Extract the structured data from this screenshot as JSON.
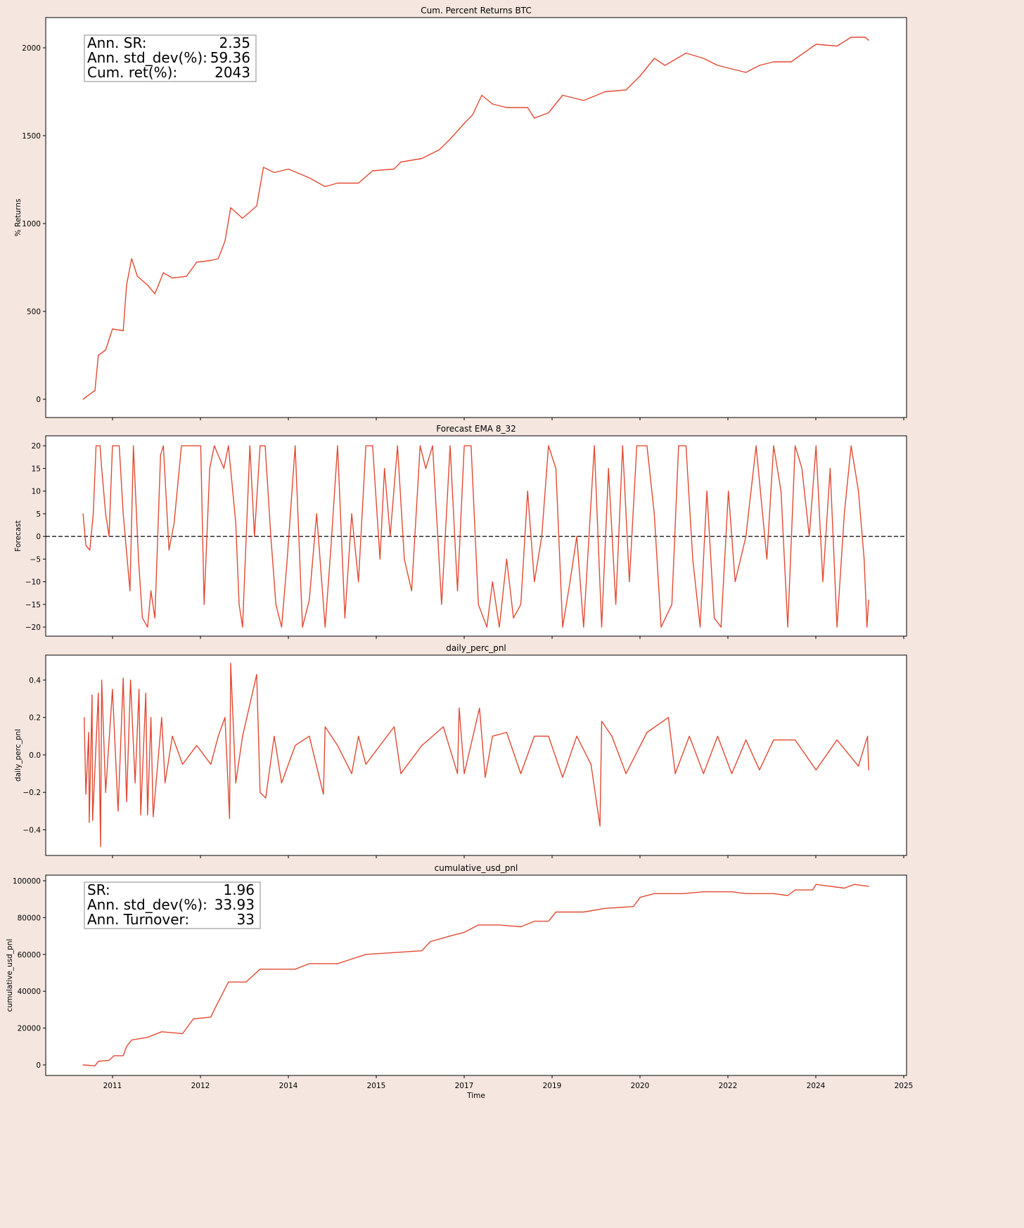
{
  "colors": {
    "background": "#f5e7e0",
    "line": "#e24a33",
    "axes": "#ffffff"
  },
  "chart_data": [
    {
      "type": "line",
      "title": "Cum. Percent Returns BTC",
      "xlabel": "",
      "ylabel": "% Returns",
      "ylim": [
        -104,
        2172
      ],
      "xlim": [
        2009.82,
        2025.04
      ],
      "yticks": [
        "0",
        "500",
        "1000",
        "1500",
        "2000"
      ],
      "ytick_values": [
        0,
        500,
        1000,
        1500,
        2000
      ],
      "grid": false,
      "stats_box": {
        "rows": [
          {
            "label": "Ann. SR:",
            "value": "2.35"
          },
          {
            "label": "Ann. std_dev(%):",
            "value": "59.36"
          },
          {
            "label": "Cum. ret(%):",
            "value": "2043"
          }
        ]
      },
      "x": [
        2010.48,
        2010.69,
        2010.75,
        2010.88,
        2011.0,
        2011.19,
        2011.25,
        2011.34,
        2011.44,
        2011.62,
        2011.75,
        2011.9,
        2012.06,
        2012.31,
        2012.49,
        2012.74,
        2012.87,
        2012.99,
        2013.09,
        2013.3,
        2013.55,
        2013.67,
        2013.86,
        2014.11,
        2014.48,
        2014.76,
        2014.98,
        2015.35,
        2015.6,
        2015.98,
        2016.1,
        2016.47,
        2016.78,
        2016.97,
        2017.22,
        2017.37,
        2017.53,
        2017.72,
        2017.97,
        2018.34,
        2018.46,
        2018.71,
        2018.96,
        2019.33,
        2019.71,
        2020.08,
        2020.33,
        2020.58,
        2020.77,
        2021.14,
        2021.45,
        2021.7,
        2021.95,
        2022.2,
        2022.44,
        2022.69,
        2023.0,
        2023.44,
        2023.81,
        2024.06,
        2024.31,
        2024.37
      ],
      "y": [
        0,
        50,
        250,
        280,
        400,
        390,
        650,
        800,
        700,
        650,
        600,
        720,
        690,
        700,
        780,
        790,
        800,
        900,
        1090,
        1030,
        1100,
        1320,
        1290,
        1310,
        1260,
        1210,
        1230,
        1230,
        1300,
        1310,
        1350,
        1370,
        1420,
        1480,
        1570,
        1620,
        1730,
        1680,
        1660,
        1660,
        1600,
        1630,
        1730,
        1700,
        1750,
        1760,
        1840,
        1940,
        1900,
        1970,
        1940,
        1900,
        1880,
        1860,
        1900,
        1920,
        1920,
        2020,
        2010,
        2060,
        2060,
        2043
      ]
    },
    {
      "type": "line",
      "title": "Forecast EMA 8_32",
      "xlabel": "",
      "ylabel": "Forecast",
      "ylim": [
        -22,
        22.2
      ],
      "xlim": [
        2009.82,
        2025.04
      ],
      "yticks": [
        "−20",
        "−15",
        "−10",
        "−5",
        "0",
        "5",
        "10",
        "15",
        "20"
      ],
      "ytick_values": [
        -20,
        -15,
        -10,
        -5,
        0,
        5,
        10,
        15,
        20
      ],
      "hline": 0,
      "grid": false,
      "x": [
        2010.48,
        2010.53,
        2010.6,
        2010.66,
        2010.71,
        2010.78,
        2010.81,
        2010.88,
        2010.94,
        2011.0,
        2011.12,
        2011.19,
        2011.31,
        2011.37,
        2011.46,
        2011.53,
        2011.62,
        2011.68,
        2011.75,
        2011.85,
        2011.9,
        2012.0,
        2012.09,
        2012.22,
        2012.56,
        2012.62,
        2012.72,
        2012.8,
        2012.97,
        2013.05,
        2013.18,
        2013.24,
        2013.3,
        2013.43,
        2013.51,
        2013.61,
        2013.7,
        2013.8,
        2013.89,
        2013.99,
        2014.09,
        2014.23,
        2014.36,
        2014.48,
        2014.61,
        2014.76,
        2014.86,
        2014.98,
        2015.11,
        2015.23,
        2015.35,
        2015.48,
        2015.6,
        2015.73,
        2015.81,
        2015.91,
        2016.04,
        2016.16,
        2016.29,
        2016.44,
        2016.54,
        2016.66,
        2016.82,
        2016.97,
        2017.1,
        2017.22,
        2017.34,
        2017.47,
        2017.62,
        2017.72,
        2017.84,
        2017.97,
        2018.09,
        2018.22,
        2018.34,
        2018.46,
        2018.59,
        2018.71,
        2018.84,
        2018.96,
        2019.09,
        2019.21,
        2019.33,
        2019.52,
        2019.65,
        2019.77,
        2019.9,
        2020.02,
        2020.14,
        2020.27,
        2020.45,
        2020.58,
        2020.7,
        2020.89,
        2021.01,
        2021.14,
        2021.26,
        2021.39,
        2021.51,
        2021.64,
        2021.76,
        2021.89,
        2022.01,
        2022.2,
        2022.38,
        2022.57,
        2022.69,
        2022.82,
        2022.94,
        2023.07,
        2023.19,
        2023.32,
        2023.44,
        2023.56,
        2023.69,
        2023.81,
        2023.94,
        2024.06,
        2024.19,
        2024.29,
        2024.34,
        2024.37
      ],
      "y": [
        5,
        -2,
        -3,
        5,
        20,
        20,
        15,
        5,
        0,
        20,
        20,
        5,
        -12,
        20,
        -5,
        -18,
        -20,
        -12,
        -18,
        18,
        20,
        -3,
        3,
        20,
        20,
        -15,
        15,
        20,
        15,
        20,
        3,
        -15,
        -20,
        20,
        0,
        20,
        20,
        0,
        -15,
        -20,
        -5,
        20,
        -20,
        -14,
        5,
        -20,
        -3,
        20,
        -18,
        5,
        -10,
        20,
        20,
        -5,
        15,
        0,
        20,
        -5,
        -12,
        20,
        15,
        20,
        -15,
        20,
        -12,
        20,
        20,
        -15,
        -20,
        -10,
        -20,
        -5,
        -18,
        -15,
        10,
        -10,
        0,
        20,
        15,
        -20,
        -10,
        0,
        -20,
        20,
        -20,
        15,
        -15,
        20,
        -10,
        20,
        20,
        5,
        -20,
        -15,
        20,
        20,
        -5,
        -20,
        10,
        -18,
        -20,
        10,
        -10,
        0,
        20,
        -5,
        20,
        10,
        -20,
        20,
        15,
        0,
        20,
        -10,
        15,
        -20,
        5,
        20,
        10,
        -5,
        -20,
        -14
      ]
    },
    {
      "type": "line",
      "title": "daily_perc_pnl",
      "xlabel": "",
      "ylabel": "daily_perc_pnl",
      "ylim": [
        -0.537,
        0.533
      ],
      "xlim": [
        2009.82,
        2025.04
      ],
      "yticks": [
        "−0.4",
        "−0.2",
        "0.0",
        "0.2",
        "0.4"
      ],
      "ytick_values": [
        -0.4,
        -0.2,
        0,
        0.2,
        0.4
      ],
      "grid": false,
      "x": [
        2010.5,
        2010.53,
        2010.58,
        2010.59,
        2010.64,
        2010.65,
        2010.75,
        2010.79,
        2010.81,
        2010.88,
        2011.0,
        2011.1,
        2011.19,
        2011.25,
        2011.32,
        2011.4,
        2011.47,
        2011.5,
        2011.59,
        2011.62,
        2011.68,
        2011.72,
        2011.87,
        2011.93,
        2012.06,
        2012.24,
        2012.49,
        2012.74,
        2012.87,
        2012.99,
        2013.07,
        2013.09,
        2013.18,
        2013.3,
        2013.55,
        2013.61,
        2013.71,
        2013.86,
        2013.99,
        2014.23,
        2014.48,
        2014.73,
        2014.76,
        2014.98,
        2015.23,
        2015.35,
        2015.48,
        2015.73,
        2015.98,
        2016.1,
        2016.47,
        2016.85,
        2017.1,
        2017.13,
        2017.22,
        2017.49,
        2017.59,
        2017.72,
        2017.97,
        2018.22,
        2018.46,
        2018.71,
        2018.96,
        2019.21,
        2019.46,
        2019.62,
        2019.65,
        2019.83,
        2020.08,
        2020.45,
        2020.83,
        2020.95,
        2021.2,
        2021.45,
        2021.7,
        2021.95,
        2022.2,
        2022.44,
        2022.69,
        2023.07,
        2023.44,
        2023.81,
        2024.19,
        2024.35,
        2024.37
      ],
      "y": [
        0.2,
        -0.21,
        0.12,
        -0.36,
        0.32,
        -0.35,
        0.33,
        -0.49,
        0.4,
        -0.2,
        0.35,
        -0.3,
        0.41,
        -0.25,
        0.4,
        -0.15,
        0.35,
        -0.32,
        0.33,
        -0.32,
        0.2,
        -0.33,
        0.2,
        -0.15,
        0.1,
        -0.05,
        0.05,
        -0.05,
        0.1,
        0.2,
        -0.34,
        0.49,
        -0.15,
        0.1,
        0.43,
        -0.2,
        -0.23,
        0.1,
        -0.15,
        0.05,
        0.1,
        -0.21,
        0.15,
        0.05,
        -0.1,
        0.1,
        -0.05,
        0.05,
        0.15,
        -0.1,
        0.05,
        0.15,
        -0.1,
        0.25,
        -0.1,
        0.25,
        -0.12,
        0.1,
        0.12,
        -0.1,
        0.1,
        0.1,
        -0.12,
        0.1,
        -0.05,
        -0.38,
        0.18,
        0.1,
        -0.1,
        0.12,
        0.2,
        -0.1,
        0.1,
        -0.1,
        0.1,
        -0.1,
        0.08,
        -0.08,
        0.08,
        0.08,
        -0.08,
        0.08,
        -0.06,
        0.1,
        -0.08
      ]
    },
    {
      "type": "line",
      "title": "cumulative_usd_pnl",
      "xlabel": "Time",
      "ylabel": "cumulative_usd_pnl",
      "ylim": [
        -5725,
        103050
      ],
      "xlim": [
        2009.82,
        2025.04
      ],
      "yticks": [
        "0",
        "20000",
        "40000",
        "60000",
        "80000",
        "100000"
      ],
      "ytick_values": [
        0,
        20000,
        40000,
        60000,
        80000,
        100000
      ],
      "xticks": [
        "2011",
        "2012",
        "2014",
        "2015",
        "2017",
        "2019",
        "2020",
        "2022",
        "2024",
        "2025"
      ],
      "grid": false,
      "stats_box": {
        "rows": [
          {
            "label": "SR:",
            "value": "1.96"
          },
          {
            "label": "Ann. std_dev(%):",
            "value": "33.93"
          },
          {
            "label": "Ann. Turnover:",
            "value": "33"
          }
        ]
      },
      "x": [
        2010.48,
        2010.69,
        2010.75,
        2010.94,
        2011.03,
        2011.19,
        2011.25,
        2011.34,
        2011.62,
        2011.87,
        2012.24,
        2012.43,
        2012.74,
        2012.8,
        2013.05,
        2013.36,
        2013.61,
        2014.23,
        2014.48,
        2014.98,
        2015.48,
        2015.98,
        2016.47,
        2016.62,
        2016.97,
        2017.22,
        2017.47,
        2017.84,
        2018.22,
        2018.46,
        2018.71,
        2018.84,
        2019.33,
        2019.71,
        2020.21,
        2020.33,
        2020.58,
        2021.08,
        2021.45,
        2021.95,
        2022.2,
        2022.69,
        2022.94,
        2023.07,
        2023.38,
        2023.44,
        2023.94,
        2024.12,
        2024.37
      ],
      "y": [
        0,
        -500,
        2000,
        2500,
        5000,
        5000,
        10000,
        13500,
        15000,
        18000,
        17000,
        25000,
        26000,
        30000,
        45000,
        45000,
        52000,
        52000,
        55000,
        55000,
        60000,
        61000,
        62000,
        67000,
        70000,
        72000,
        76000,
        76000,
        75000,
        78000,
        78000,
        83000,
        83000,
        85000,
        86000,
        91000,
        93000,
        93000,
        94000,
        94000,
        93000,
        93000,
        92000,
        95000,
        95000,
        98000,
        96000,
        98000,
        97000
      ]
    }
  ]
}
